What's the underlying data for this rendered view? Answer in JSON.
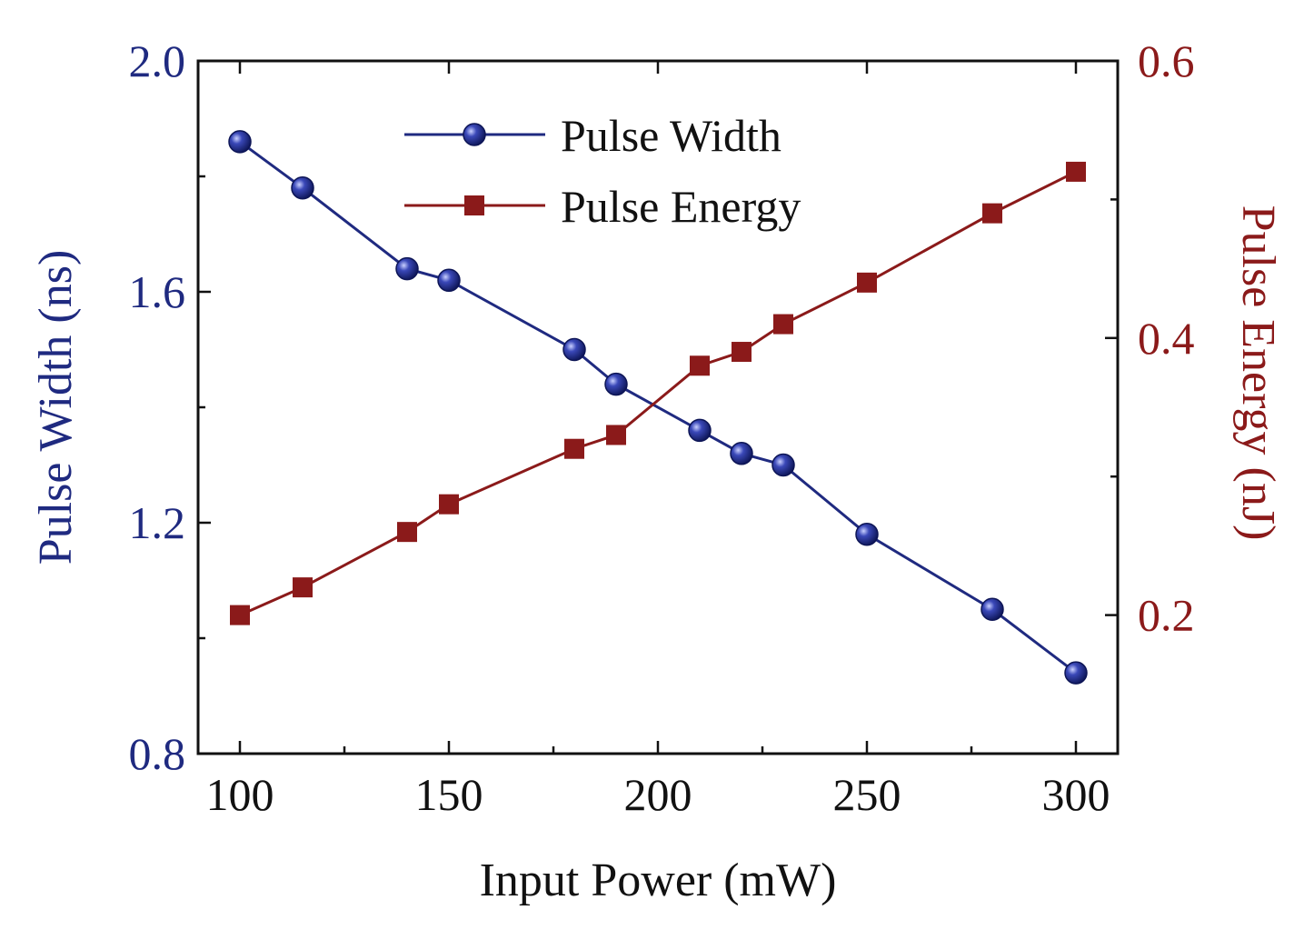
{
  "chart_data": {
    "type": "line",
    "dual_y_axis": true,
    "x": [
      100,
      115,
      140,
      150,
      180,
      190,
      210,
      220,
      230,
      250,
      280,
      300
    ],
    "xlabel": "Input Power (mW)",
    "xlim": [
      90,
      310
    ],
    "x_ticks": [
      100,
      150,
      200,
      250,
      300
    ],
    "x_tick_labels": [
      "100",
      "150",
      "200",
      "250",
      "300"
    ],
    "ylabel": "Pulse Width (ns)",
    "ylim": [
      0.8,
      2.0
    ],
    "y_ticks": [
      0.8,
      1.2,
      1.6,
      2.0
    ],
    "y_tick_labels": [
      "0.8",
      "1.2",
      "1.6",
      "2.0"
    ],
    "y2label": "Pulse Energy (nJ)",
    "y2lim": [
      0.1,
      0.6
    ],
    "y2_ticks": [
      0.2,
      0.4,
      0.6
    ],
    "y2_tick_labels": [
      "0.2",
      "0.4",
      "0.6"
    ],
    "legend_position": "top-center",
    "grid": false,
    "series": [
      {
        "name": "Pulse Width",
        "axis": "left",
        "marker": "sphere",
        "color": "#1f2a80",
        "values": [
          1.86,
          1.78,
          1.64,
          1.62,
          1.5,
          1.44,
          1.36,
          1.32,
          1.3,
          1.18,
          1.05,
          0.94
        ]
      },
      {
        "name": "Pulse Energy",
        "axis": "right",
        "marker": "square",
        "color": "#8b1a1a",
        "values": [
          0.2,
          0.22,
          0.26,
          0.28,
          0.32,
          0.33,
          0.38,
          0.39,
          0.41,
          0.44,
          0.49,
          0.52
        ]
      }
    ]
  },
  "colors": {
    "left_axis": "#1f2a80",
    "right_axis": "#8b1a1a",
    "frame": "#111111"
  }
}
